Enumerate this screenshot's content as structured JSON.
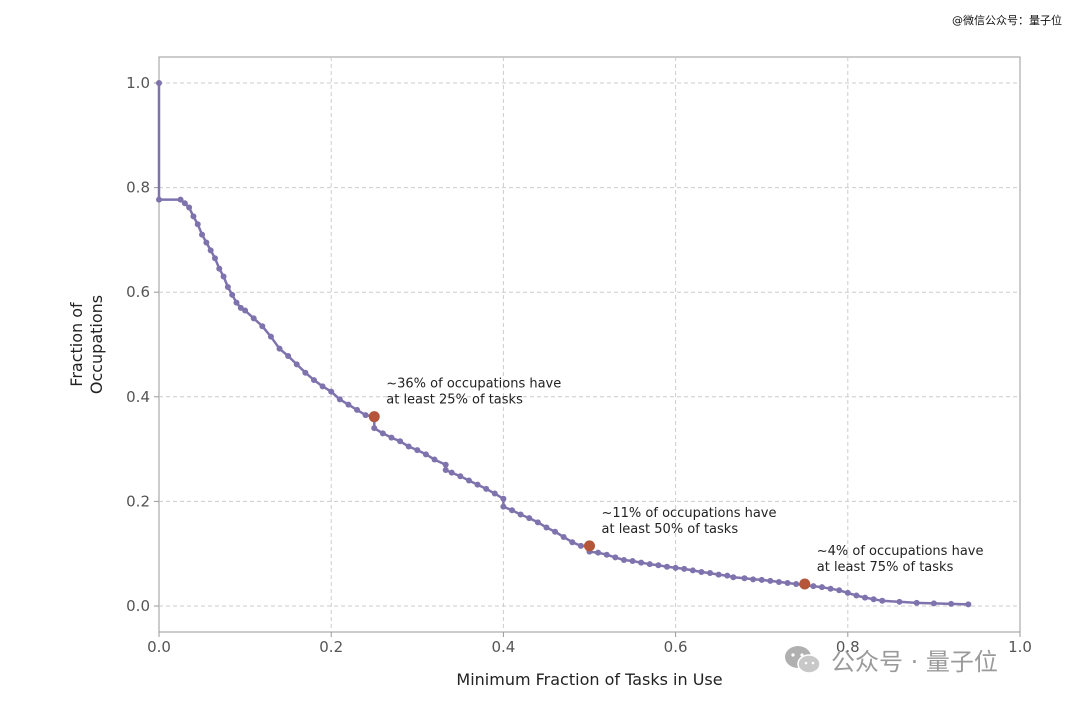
{
  "credit_text": "@微信公众号：量子位",
  "watermark_text": "公众号 · 量子位",
  "colors": {
    "line": "#7f73ad",
    "highlight": "#b5553a",
    "grid": "#cccccc",
    "axis": "#999999"
  },
  "chart_data": {
    "type": "line",
    "title": "",
    "xlabel": "Minimum Fraction of Tasks in Use",
    "ylabel": [
      "Fraction of",
      "Occupations"
    ],
    "xlim": [
      0.0,
      1.0
    ],
    "ylim": [
      0.0,
      1.0
    ],
    "xticks": [
      "0.0",
      "0.2",
      "0.4",
      "0.6",
      "0.8",
      "1.0"
    ],
    "yticks": [
      "0.0",
      "0.2",
      "0.4",
      "0.6",
      "0.8",
      "1.0"
    ],
    "grid": true,
    "series": [
      {
        "x": [
          0.0,
          0.0,
          0.025,
          0.03,
          0.035,
          0.04,
          0.045,
          0.05,
          0.055,
          0.06,
          0.065,
          0.07,
          0.075,
          0.08,
          0.085,
          0.09,
          0.095,
          0.1,
          0.11,
          0.12,
          0.13,
          0.14,
          0.15,
          0.16,
          0.17,
          0.18,
          0.19,
          0.2,
          0.21,
          0.22,
          0.23,
          0.24,
          0.25,
          0.25,
          0.26,
          0.27,
          0.28,
          0.29,
          0.3,
          0.31,
          0.32,
          0.333,
          0.333,
          0.34,
          0.35,
          0.36,
          0.37,
          0.38,
          0.39,
          0.4,
          0.4,
          0.41,
          0.42,
          0.43,
          0.44,
          0.45,
          0.46,
          0.47,
          0.48,
          0.49,
          0.5,
          0.5,
          0.51,
          0.52,
          0.53,
          0.54,
          0.55,
          0.56,
          0.57,
          0.58,
          0.59,
          0.6,
          0.61,
          0.62,
          0.63,
          0.64,
          0.65,
          0.66,
          0.667,
          0.68,
          0.69,
          0.7,
          0.71,
          0.72,
          0.73,
          0.74,
          0.75,
          0.76,
          0.77,
          0.78,
          0.79,
          0.8,
          0.81,
          0.82,
          0.83,
          0.84,
          0.86,
          0.88,
          0.9,
          0.92,
          0.94
        ],
        "y": [
          1.0,
          0.777,
          0.777,
          0.77,
          0.762,
          0.745,
          0.73,
          0.71,
          0.695,
          0.68,
          0.665,
          0.645,
          0.63,
          0.61,
          0.595,
          0.58,
          0.57,
          0.565,
          0.55,
          0.535,
          0.515,
          0.492,
          0.478,
          0.462,
          0.446,
          0.432,
          0.42,
          0.41,
          0.395,
          0.385,
          0.375,
          0.365,
          0.362,
          0.34,
          0.33,
          0.322,
          0.315,
          0.305,
          0.298,
          0.29,
          0.28,
          0.27,
          0.26,
          0.255,
          0.248,
          0.24,
          0.232,
          0.224,
          0.215,
          0.205,
          0.19,
          0.183,
          0.175,
          0.168,
          0.16,
          0.15,
          0.142,
          0.132,
          0.122,
          0.115,
          0.115,
          0.104,
          0.102,
          0.098,
          0.093,
          0.088,
          0.086,
          0.083,
          0.08,
          0.078,
          0.075,
          0.073,
          0.071,
          0.068,
          0.065,
          0.063,
          0.06,
          0.058,
          0.055,
          0.053,
          0.051,
          0.05,
          0.048,
          0.046,
          0.044,
          0.042,
          0.04,
          0.038,
          0.036,
          0.033,
          0.03,
          0.025,
          0.02,
          0.016,
          0.013,
          0.01,
          0.008,
          0.006,
          0.005,
          0.004,
          0.003
        ]
      }
    ],
    "highlights": [
      {
        "x": 0.25,
        "y": 0.362,
        "label": [
          "~36% of occupations have",
          "at least 25% of tasks"
        ]
      },
      {
        "x": 0.5,
        "y": 0.115,
        "label": [
          "~11% of occupations have",
          "at least 50% of tasks"
        ]
      },
      {
        "x": 0.75,
        "y": 0.042,
        "label": [
          "~4% of occupations have",
          "at least 75% of tasks"
        ]
      }
    ]
  }
}
